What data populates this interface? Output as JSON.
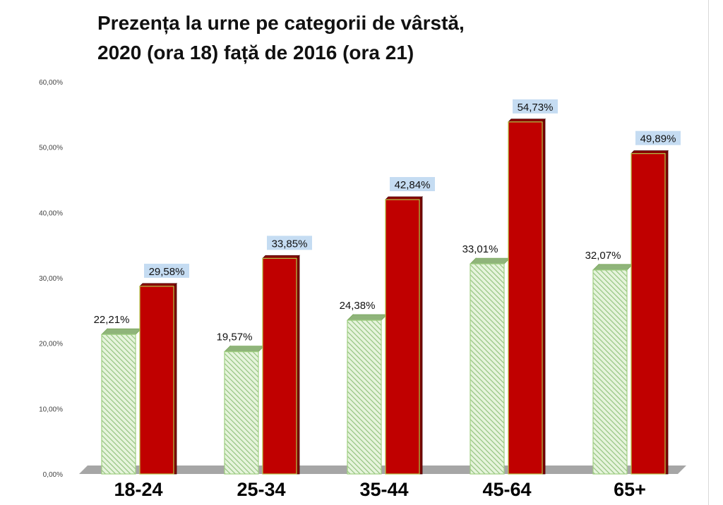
{
  "chart_data": {
    "type": "bar",
    "title_lines": [
      "Prezența la urne pe categorii de vârstă,",
      "2020 (ora 18) față de 2016 (ora 21)"
    ],
    "categories": [
      "18-24",
      "25-34",
      "35-44",
      "45-64",
      "65+"
    ],
    "series": [
      {
        "values": [
          22.21,
          19.57,
          24.38,
          33.01,
          32.07
        ],
        "labels": [
          "22,21%",
          "19,57%",
          "24,38%",
          "33,01%",
          "32,07%"
        ],
        "color": "#c8e6b4",
        "edge_color": "#7aa95c",
        "pattern": "diagonal-hatch"
      },
      {
        "values": [
          29.58,
          33.85,
          42.84,
          54.73,
          49.89
        ],
        "labels": [
          "29,58%",
          "33,85%",
          "42,84%",
          "54,73%",
          "49,89%"
        ],
        "color": "#c00000",
        "edge_color": "#6b0000",
        "label_background": "#c5dcf2"
      }
    ],
    "ylim": [
      0,
      60
    ],
    "yticks": [
      0,
      10,
      20,
      30,
      40,
      50,
      60
    ],
    "ytick_labels": [
      "0,00%",
      "10,00%",
      "20,00%",
      "30,00%",
      "40,00%",
      "50,00%",
      "60,00%"
    ],
    "xlabel": "",
    "ylabel": "",
    "grid": false,
    "legend": "none",
    "style": "3d-bars",
    "floor_color": "#a6a6a6"
  }
}
